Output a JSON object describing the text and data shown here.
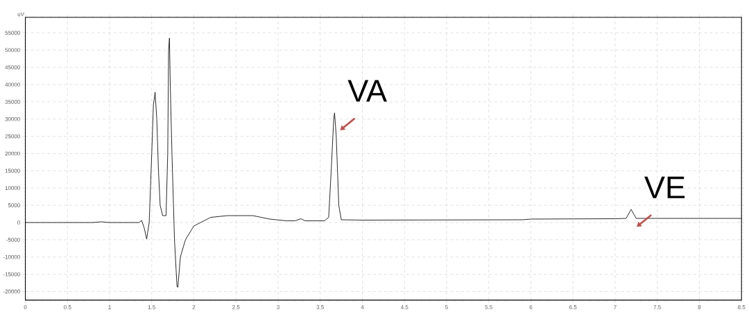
{
  "chart_data": {
    "type": "line",
    "ylabel": "uV",
    "xlim": [
      0,
      8.5
    ],
    "ylim": [
      -22500,
      59500
    ],
    "xticks": [
      0,
      0.5,
      1,
      1.5,
      2,
      2.5,
      3,
      3.5,
      4,
      4.5,
      5,
      5.5,
      6,
      6.5,
      7,
      7.5,
      8,
      8.5
    ],
    "yticks": [
      -20000,
      -15000,
      -10000,
      -5000,
      0,
      5000,
      10000,
      15000,
      20000,
      25000,
      30000,
      35000,
      40000,
      45000,
      50000,
      55000
    ],
    "grid": true,
    "marker": "none",
    "line_style": "solid",
    "series": [
      {
        "color": "#1a1a1a",
        "x": [
          0,
          0.8,
          0.9,
          1.0,
          1.35,
          1.38,
          1.41,
          1.44,
          1.47,
          1.5,
          1.52,
          1.54,
          1.56,
          1.58,
          1.6,
          1.63,
          1.67,
          1.69,
          1.7,
          1.71,
          1.72,
          1.74,
          1.77,
          1.8,
          1.81,
          1.84,
          1.9,
          2.0,
          2.2,
          2.4,
          2.7,
          2.9,
          3.1,
          3.2,
          3.27,
          3.32,
          3.55,
          3.6,
          3.63,
          3.66,
          3.67,
          3.69,
          3.72,
          3.75,
          4.0,
          5.9,
          6.0,
          7.0,
          7.13,
          7.19,
          7.25,
          8.5
        ],
        "values": [
          0,
          0,
          200,
          0,
          0,
          600,
          -1500,
          -4800,
          0,
          20000,
          34000,
          37800,
          30000,
          15000,
          5000,
          2000,
          2000,
          20000,
          50000,
          53500,
          40000,
          20000,
          -5000,
          -18500,
          -18800,
          -10000,
          -5000,
          -1000,
          1500,
          2000,
          2000,
          1000,
          500,
          500,
          1100,
          500,
          500,
          1500,
          15000,
          30000,
          31800,
          25000,
          5000,
          800,
          700,
          800,
          1000,
          1100,
          1200,
          3800,
          1200,
          1200
        ]
      }
    ],
    "annotations": [
      {
        "text": "VA",
        "x": 3.67,
        "y": 31800
      },
      {
        "text": "VE",
        "x": 7.19,
        "y": 3800
      }
    ]
  }
}
